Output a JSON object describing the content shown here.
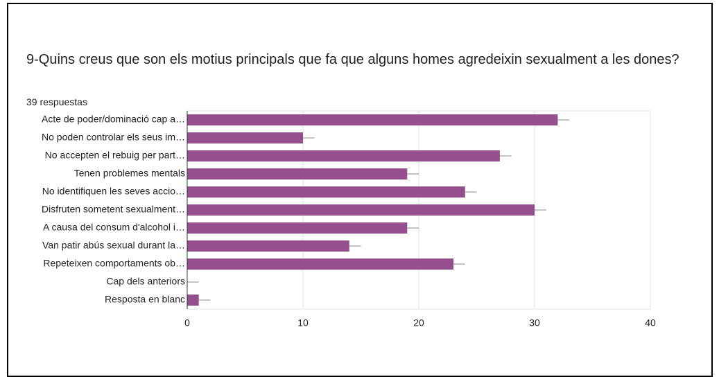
{
  "chart_data": {
    "type": "bar",
    "orientation": "horizontal",
    "title": "9-Quins creus que son els motius principals que fa que alguns homes agredeixin sexualment a les dones?",
    "subtitle": "39 respuestas",
    "categories": [
      "Acte de poder/dominació cap a…",
      "No poden controlar els seus im…",
      "No accepten el rebuig per part…",
      "Tenen problemes mentals",
      "No identifiquen les seves accio…",
      "Disfruten sometent sexualment…",
      "A causa del consum d'alcohol i…",
      "Van patir abús sexual durant la…",
      "Repeteixen comportaments ob…",
      "Cap dels anteriors",
      "Resposta en blanc"
    ],
    "values": [
      32,
      10,
      27,
      19,
      24,
      30,
      19,
      14,
      23,
      0,
      1
    ],
    "errors": [
      1,
      1,
      1,
      1,
      1,
      1,
      1,
      1,
      1,
      1,
      1
    ],
    "color": "#964f8e",
    "xlim": [
      0,
      40
    ],
    "xticks": [
      0,
      10,
      20,
      30,
      40
    ],
    "grid": true
  }
}
